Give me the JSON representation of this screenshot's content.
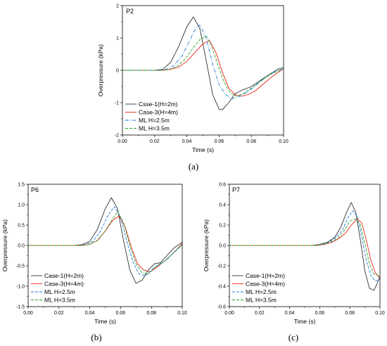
{
  "chart_data": [
    {
      "type": "line",
      "title": "P2",
      "caption": "(a)",
      "xlabel": "Time (s)",
      "ylabel": "Overpressure (kPa)",
      "xlim": [
        0,
        0.1
      ],
      "ylim": [
        -2,
        2
      ],
      "xticks": [
        "0.00",
        "0.02",
        "0.04",
        "0.06",
        "0.08",
        "0.10"
      ],
      "yticks": [
        "-2",
        "-1",
        "0",
        "1",
        "2"
      ],
      "legend": "lower-left",
      "series": [
        {
          "name": "Csse-1(H=2m)",
          "color": "#333333",
          "dash": "solid",
          "x": [
            0,
            0.02,
            0.025,
            0.03,
            0.035,
            0.04,
            0.044,
            0.048,
            0.052,
            0.056,
            0.06,
            0.062,
            0.066,
            0.07,
            0.074,
            0.08,
            0.086,
            0.092,
            0.097,
            0.1
          ],
          "y": [
            0,
            0,
            0.03,
            0.25,
            0.75,
            1.35,
            1.65,
            1.3,
            0.3,
            -0.75,
            -1.2,
            -1.22,
            -1.0,
            -0.72,
            -0.62,
            -0.5,
            -0.3,
            -0.1,
            0.05,
            0.08
          ]
        },
        {
          "name": "Case-3(H=4m)",
          "color": "#e8271b",
          "dash": "solid",
          "x": [
            0,
            0.025,
            0.03,
            0.035,
            0.04,
            0.045,
            0.05,
            0.054,
            0.058,
            0.062,
            0.066,
            0.07,
            0.074,
            0.078,
            0.082,
            0.088,
            0.094,
            0.1
          ],
          "y": [
            0,
            0,
            0.03,
            0.1,
            0.28,
            0.55,
            0.82,
            0.92,
            0.55,
            -0.05,
            -0.55,
            -0.75,
            -0.8,
            -0.75,
            -0.65,
            -0.4,
            -0.15,
            0.05
          ]
        },
        {
          "name": "ML H=2.5m",
          "color": "#1f77d4",
          "dash": "dashdot",
          "x": [
            0,
            0.022,
            0.027,
            0.032,
            0.037,
            0.042,
            0.046,
            0.048,
            0.052,
            0.056,
            0.06,
            0.064,
            0.068,
            0.072,
            0.076,
            0.082,
            0.088,
            0.094,
            0.1
          ],
          "y": [
            0,
            0,
            0.03,
            0.15,
            0.45,
            0.95,
            1.35,
            1.4,
            1.0,
            0.2,
            -0.45,
            -0.75,
            -0.88,
            -0.82,
            -0.72,
            -0.5,
            -0.25,
            -0.05,
            0.05
          ]
        },
        {
          "name": "ML H=3.5m",
          "color": "#2aa02b",
          "dash": "dashed",
          "x": [
            0,
            0.024,
            0.029,
            0.034,
            0.039,
            0.044,
            0.048,
            0.052,
            0.055,
            0.059,
            0.063,
            0.067,
            0.071,
            0.075,
            0.08,
            0.086,
            0.092,
            0.1
          ],
          "y": [
            0,
            0,
            0.03,
            0.12,
            0.35,
            0.7,
            0.95,
            1.05,
            0.8,
            0.2,
            -0.35,
            -0.7,
            -0.8,
            -0.72,
            -0.55,
            -0.32,
            -0.12,
            0.05
          ]
        }
      ]
    },
    {
      "type": "line",
      "title": "P6",
      "caption": "(b)",
      "xlabel": "Time (s)",
      "ylabel": "Overpressure (kPa)",
      "xlim": [
        0,
        0.1
      ],
      "ylim": [
        -1.5,
        1.5
      ],
      "xticks": [
        "0.00",
        "0.02",
        "0.04",
        "0.06",
        "0.08",
        "0.10"
      ],
      "yticks": [
        "-1.5",
        "-1.0",
        "-0.5",
        "0.0",
        "0.5",
        "1.0",
        "1.5"
      ],
      "legend": "lower-left",
      "series": [
        {
          "name": "Case-1(H=2m)",
          "color": "#333333",
          "dash": "solid",
          "x": [
            0,
            0.03,
            0.035,
            0.04,
            0.045,
            0.05,
            0.054,
            0.058,
            0.062,
            0.066,
            0.07,
            0.074,
            0.078,
            0.082,
            0.086,
            0.09,
            0.095,
            0.1
          ],
          "y": [
            0,
            0,
            0.02,
            0.1,
            0.4,
            0.9,
            1.17,
            0.9,
            0.1,
            -0.6,
            -0.93,
            -0.85,
            -0.6,
            -0.45,
            -0.42,
            -0.25,
            -0.05,
            0.08
          ]
        },
        {
          "name": "Case-3(H=4m)",
          "color": "#e8271b",
          "dash": "solid",
          "x": [
            0,
            0.035,
            0.04,
            0.045,
            0.05,
            0.055,
            0.059,
            0.063,
            0.067,
            0.071,
            0.075,
            0.079,
            0.083,
            0.088,
            0.094,
            0.1
          ],
          "y": [
            0,
            0,
            0.03,
            0.12,
            0.35,
            0.62,
            0.72,
            0.45,
            -0.05,
            -0.45,
            -0.6,
            -0.65,
            -0.55,
            -0.4,
            -0.2,
            0.05
          ]
        },
        {
          "name": "ML H=2.5m",
          "color": "#1f77d4",
          "dash": "dashed",
          "x": [
            0,
            0.032,
            0.037,
            0.042,
            0.047,
            0.052,
            0.056,
            0.06,
            0.064,
            0.068,
            0.072,
            0.076,
            0.08,
            0.084,
            0.088,
            0.094,
            0.1
          ],
          "y": [
            0,
            0,
            0.02,
            0.1,
            0.35,
            0.75,
            0.95,
            0.7,
            0.1,
            -0.4,
            -0.7,
            -0.75,
            -0.6,
            -0.48,
            -0.4,
            -0.2,
            0.02
          ]
        },
        {
          "name": "ML H=3.5m",
          "color": "#2aa02b",
          "dash": "dashed",
          "x": [
            0,
            0.034,
            0.039,
            0.044,
            0.049,
            0.054,
            0.058,
            0.062,
            0.066,
            0.07,
            0.074,
            0.078,
            0.082,
            0.086,
            0.09,
            0.095,
            0.1
          ],
          "y": [
            0,
            0,
            0.02,
            0.1,
            0.3,
            0.6,
            0.83,
            0.55,
            0.0,
            -0.45,
            -0.68,
            -0.7,
            -0.55,
            -0.45,
            -0.35,
            -0.15,
            0.02
          ]
        }
      ]
    },
    {
      "type": "line",
      "title": "P7",
      "caption": "(c)",
      "xlabel": "Time (s)",
      "ylabel": "Overpressure (kPa)",
      "xlim": [
        0,
        0.1
      ],
      "ylim": [
        -0.6,
        0.6
      ],
      "xticks": [
        "0.00",
        "0.02",
        "0.04",
        "0.06",
        "0.08",
        "0.10"
      ],
      "yticks": [
        "-0.6",
        "-0.4",
        "-0.2",
        "0.0",
        "0.2",
        "0.4",
        "0.6"
      ],
      "legend": "lower-left",
      "series": [
        {
          "name": "Case-1(H=2m)",
          "color": "#333333",
          "dash": "solid",
          "x": [
            0,
            0.055,
            0.06,
            0.065,
            0.07,
            0.074,
            0.078,
            0.081,
            0.084,
            0.087,
            0.09,
            0.093,
            0.096,
            0.098,
            0.1
          ],
          "y": [
            0,
            0,
            0.01,
            0.03,
            0.08,
            0.18,
            0.33,
            0.42,
            0.32,
            0.05,
            -0.25,
            -0.42,
            -0.44,
            -0.38,
            -0.3
          ]
        },
        {
          "name": "Case-3(H=4m)",
          "color": "#e8271b",
          "dash": "solid",
          "x": [
            0,
            0.058,
            0.063,
            0.068,
            0.073,
            0.077,
            0.081,
            0.085,
            0.088,
            0.091,
            0.094,
            0.097,
            0.1
          ],
          "y": [
            0,
            0,
            0.01,
            0.03,
            0.07,
            0.12,
            0.2,
            0.26,
            0.22,
            0.05,
            -0.15,
            -0.27,
            -0.32
          ]
        },
        {
          "name": "ML H=2.5m",
          "color": "#1f77d4",
          "dash": "dashed",
          "x": [
            0,
            0.056,
            0.061,
            0.066,
            0.071,
            0.075,
            0.079,
            0.082,
            0.085,
            0.088,
            0.091,
            0.094,
            0.097,
            0.1
          ],
          "y": [
            0,
            0,
            0.01,
            0.03,
            0.08,
            0.15,
            0.28,
            0.34,
            0.28,
            0.08,
            -0.15,
            -0.3,
            -0.35,
            -0.33
          ]
        },
        {
          "name": "ML H=3.5m",
          "color": "#2aa02b",
          "dash": "dashed",
          "x": [
            0,
            0.057,
            0.062,
            0.067,
            0.072,
            0.076,
            0.08,
            0.084,
            0.087,
            0.09,
            0.093,
            0.096,
            0.1
          ],
          "y": [
            0,
            0,
            0.01,
            0.03,
            0.07,
            0.14,
            0.24,
            0.26,
            0.2,
            0.02,
            -0.18,
            -0.28,
            -0.3
          ]
        }
      ]
    }
  ]
}
